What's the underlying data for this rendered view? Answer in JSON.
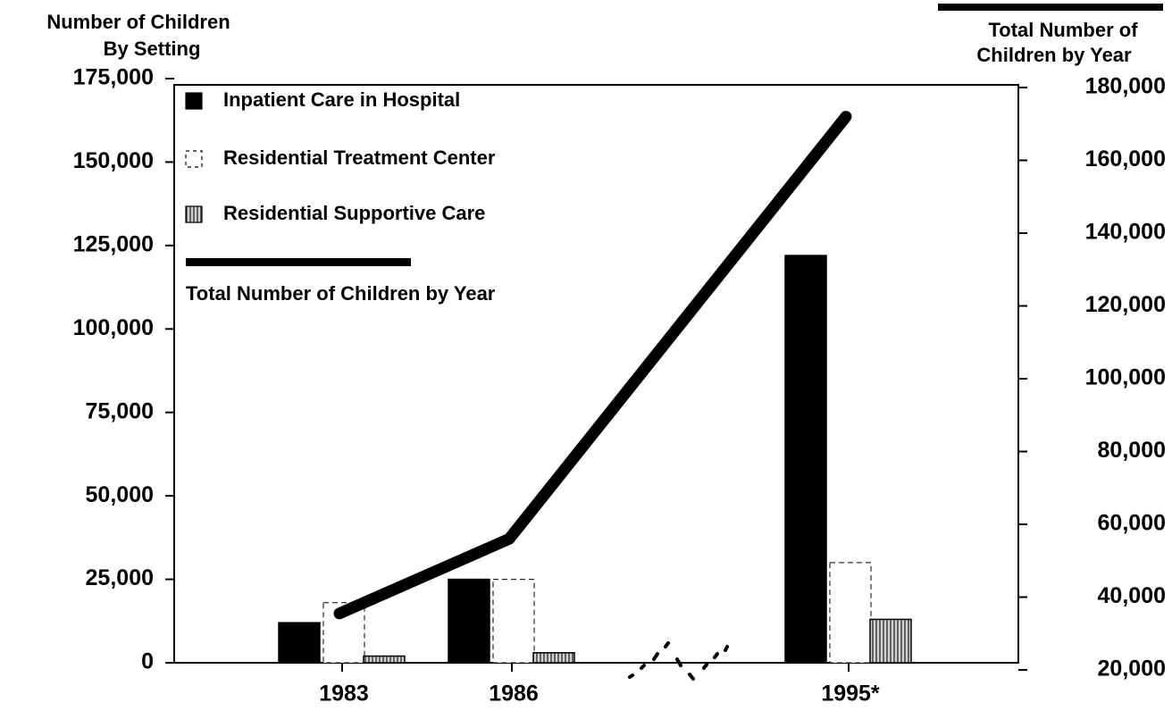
{
  "chart_data": {
    "type": "bar",
    "y_label": "Number of Children By Setting",
    "y2_label": "Total Number of Children by Year",
    "categories": [
      "1983",
      "1986",
      "1995*"
    ],
    "series": [
      {
        "name": "Inpatient Care in Hospital",
        "color": "#000000",
        "values": [
          12000,
          25000,
          122000
        ]
      },
      {
        "name": "Residential Treatment Center",
        "color": "#ffffff",
        "values": [
          18000,
          25000,
          30000
        ]
      },
      {
        "name": "Residential Supportive Care",
        "color": "#9a9a9a",
        "values": [
          2000,
          3000,
          13000
        ]
      },
      {
        "name": "Total Number of Children by Year",
        "color": "#000000",
        "axis": "y2",
        "values": [
          35500,
          56000,
          172000
        ]
      }
    ],
    "ylim": [
      0,
      175000
    ],
    "yticks": [
      0,
      {
        "value": 25000,
        "label": "25,000"
      },
      {
        "value": 50000,
        "label": "50,000"
      },
      {
        "value": 75000,
        "label": "75,000"
      },
      {
        "value": 100000,
        "label": "100,000"
      },
      {
        "value": 125000,
        "label": "125,000"
      },
      {
        "value": 150000,
        "label": "150,000"
      },
      {
        "value": 175000,
        "label": "175,000"
      }
    ],
    "y2lim": [
      20000,
      180000
    ],
    "y2ticks": [
      {
        "value": 20000,
        "label": "20,000"
      },
      {
        "value": 40000,
        "label": "40,000"
      },
      {
        "value": 60000,
        "label": "60,000"
      },
      {
        "value": 80000,
        "label": "80,000"
      },
      {
        "value": 100000,
        "label": "100,000"
      },
      {
        "value": 120000,
        "label": "120,000"
      },
      {
        "value": 140000,
        "label": "140,000"
      },
      {
        "value": 160000,
        "label": "160,000"
      },
      {
        "value": 180000,
        "label": "180,000"
      }
    ]
  }
}
